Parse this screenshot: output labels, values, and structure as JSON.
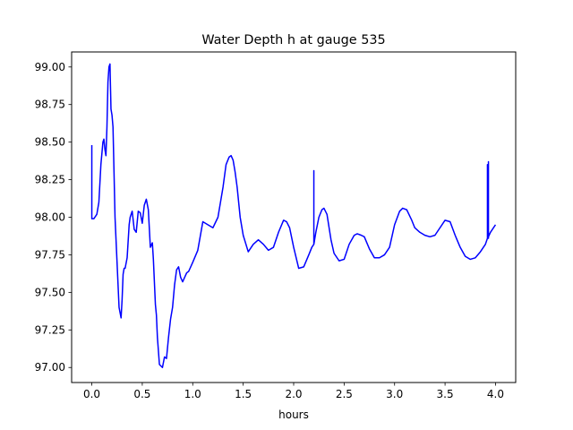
{
  "chart_data": {
    "type": "line",
    "title": "Water Depth h at gauge 535",
    "xlabel": "hours",
    "ylabel": "",
    "xlim": [
      -0.2,
      4.2
    ],
    "ylim": [
      96.9,
      99.1
    ],
    "xticks": [
      0.0,
      0.5,
      1.0,
      1.5,
      2.0,
      2.5,
      3.0,
      3.5,
      4.0
    ],
    "xtick_labels": [
      "0.0",
      "0.5",
      "1.0",
      "1.5",
      "2.0",
      "2.5",
      "3.0",
      "3.5",
      "4.0"
    ],
    "yticks": [
      97.0,
      97.25,
      97.5,
      97.75,
      98.0,
      98.25,
      98.5,
      98.75,
      99.0
    ],
    "ytick_labels": [
      "97.00",
      "97.25",
      "97.50",
      "97.75",
      "98.00",
      "98.25",
      "98.50",
      "98.75",
      "99.00"
    ],
    "grid": false,
    "series": [
      {
        "color": "#0000ff",
        "x": [
          0.0,
          0.0,
          0.02,
          0.05,
          0.07,
          0.09,
          0.11,
          0.12,
          0.13,
          0.14,
          0.15,
          0.16,
          0.17,
          0.18,
          0.19,
          0.2,
          0.21,
          0.22,
          0.23,
          0.25,
          0.27,
          0.29,
          0.3,
          0.31,
          0.32,
          0.33,
          0.35,
          0.37,
          0.38,
          0.4,
          0.42,
          0.44,
          0.46,
          0.48,
          0.5,
          0.52,
          0.54,
          0.56,
          0.58,
          0.6,
          0.61,
          0.63,
          0.64,
          0.65,
          0.67,
          0.7,
          0.72,
          0.74,
          0.76,
          0.78,
          0.8,
          0.82,
          0.84,
          0.86,
          0.88,
          0.9,
          0.92,
          0.94,
          0.96,
          1.0,
          1.05,
          1.1,
          1.15,
          1.2,
          1.25,
          1.3,
          1.33,
          1.36,
          1.38,
          1.4,
          1.42,
          1.44,
          1.47,
          1.5,
          1.55,
          1.6,
          1.65,
          1.7,
          1.75,
          1.8,
          1.85,
          1.9,
          1.93,
          1.96,
          2.0,
          2.05,
          2.1,
          2.15,
          2.18,
          2.2,
          2.2,
          2.2,
          2.2,
          2.22,
          2.25,
          2.28,
          2.3,
          2.33,
          2.37,
          2.4,
          2.45,
          2.5,
          2.55,
          2.6,
          2.63,
          2.67,
          2.7,
          2.75,
          2.8,
          2.85,
          2.9,
          2.95,
          3.0,
          3.05,
          3.08,
          3.12,
          3.17,
          3.2,
          3.25,
          3.3,
          3.35,
          3.4,
          3.45,
          3.5,
          3.55,
          3.6,
          3.65,
          3.7,
          3.75,
          3.8,
          3.85,
          3.9,
          3.92,
          3.92,
          3.93,
          3.93,
          3.93,
          3.95,
          4.0
        ],
        "y": [
          98.48,
          97.99,
          97.99,
          98.02,
          98.1,
          98.35,
          98.5,
          98.52,
          98.45,
          98.41,
          98.6,
          98.9,
          99.0,
          99.02,
          98.72,
          98.68,
          98.6,
          98.3,
          98.0,
          97.7,
          97.4,
          97.33,
          97.45,
          97.62,
          97.66,
          97.66,
          97.73,
          97.95,
          98.0,
          98.04,
          97.92,
          97.9,
          98.04,
          98.03,
          97.96,
          98.08,
          98.12,
          98.05,
          97.8,
          97.83,
          97.72,
          97.42,
          97.35,
          97.2,
          97.02,
          97.0,
          97.07,
          97.06,
          97.2,
          97.32,
          97.4,
          97.55,
          97.65,
          97.67,
          97.6,
          97.57,
          97.6,
          97.63,
          97.64,
          97.7,
          97.78,
          97.97,
          97.95,
          97.93,
          98.0,
          98.2,
          98.35,
          98.4,
          98.41,
          98.38,
          98.3,
          98.2,
          98.0,
          97.88,
          97.77,
          97.82,
          97.85,
          97.82,
          97.78,
          97.8,
          97.9,
          97.98,
          97.97,
          97.93,
          97.8,
          97.66,
          97.67,
          97.75,
          97.8,
          97.82,
          98.28,
          98.31,
          97.82,
          97.9,
          98.0,
          98.05,
          98.06,
          98.02,
          97.85,
          97.76,
          97.71,
          97.72,
          97.82,
          97.88,
          97.89,
          97.88,
          97.87,
          97.79,
          97.73,
          97.73,
          97.75,
          97.8,
          97.95,
          98.04,
          98.06,
          98.05,
          97.98,
          97.93,
          97.9,
          97.88,
          97.87,
          97.88,
          97.93,
          97.98,
          97.97,
          97.88,
          97.8,
          97.74,
          97.72,
          97.73,
          97.77,
          97.82,
          97.86,
          98.35,
          97.86,
          98.37,
          97.87,
          97.9,
          97.95
        ]
      }
    ]
  }
}
